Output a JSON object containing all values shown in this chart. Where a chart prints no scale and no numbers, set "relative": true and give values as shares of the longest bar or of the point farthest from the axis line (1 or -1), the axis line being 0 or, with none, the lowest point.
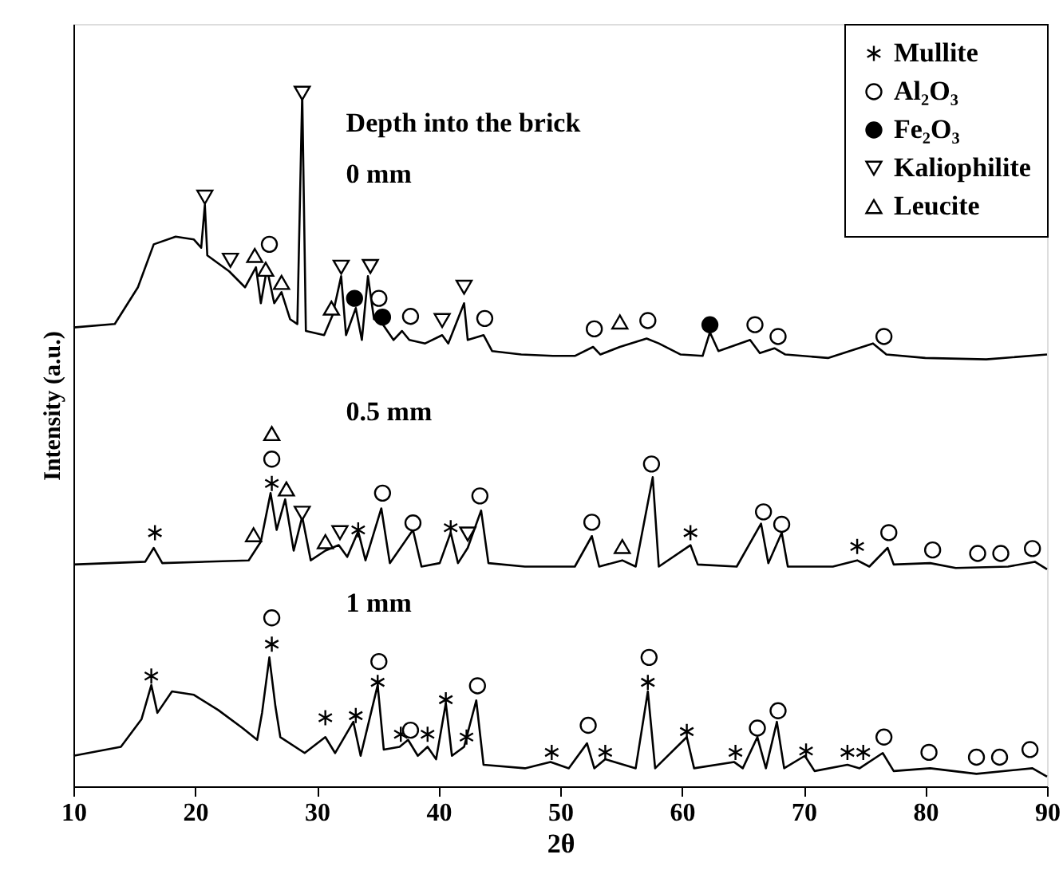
{
  "chart_data": {
    "type": "line",
    "relative": true,
    "xlabel": "2θ",
    "ylabel": "Intensity (a.u.)",
    "annotations": [
      "Depth into the brick",
      "0 mm",
      "0.5 mm",
      "1 mm"
    ],
    "xlim": [
      10,
      90
    ],
    "xticks": [
      10,
      20,
      30,
      40,
      50,
      60,
      70,
      80,
      90
    ],
    "legend": "top right",
    "grid": false,
    "tick_labels": "x",
    "series": [
      {
        "color": "#000000",
        "x": [
          10,
          13.4,
          15.3,
          16.6,
          18.4,
          19.9,
          20.5,
          20.8,
          21.0,
          22.8,
          24.1,
          25.0,
          25.4,
          25.9,
          26.5,
          27.1,
          27.8,
          28.4,
          28.8,
          29.1,
          30.6,
          31.3,
          32.0,
          32.4,
          33.2,
          33.7,
          34.2,
          34.7,
          35.4,
          36.3,
          37.0,
          37.6,
          38.9,
          40.3,
          40.8,
          42.1,
          42.4,
          43.7,
          44.4,
          46.8,
          49.4,
          51.2,
          52.7,
          53.3,
          54.9,
          57.1,
          58.1,
          59.9,
          61.7,
          62.3,
          63.0,
          65.6,
          66.4,
          67.6,
          68.5,
          72.0,
          75.7,
          76.8,
          80.0,
          85.0,
          90
        ],
        "values": [
          0.662,
          0.667,
          0.72,
          0.782,
          0.793,
          0.789,
          0.777,
          0.839,
          0.766,
          0.743,
          0.72,
          0.749,
          0.697,
          0.747,
          0.697,
          0.713,
          0.674,
          0.667,
          1.0,
          0.657,
          0.651,
          0.68,
          0.736,
          0.651,
          0.69,
          0.644,
          0.736,
          0.674,
          0.667,
          0.644,
          0.657,
          0.644,
          0.639,
          0.651,
          0.639,
          0.697,
          0.644,
          0.651,
          0.628,
          0.623,
          0.621,
          0.621,
          0.634,
          0.623,
          0.634,
          0.646,
          0.639,
          0.623,
          0.621,
          0.655,
          0.628,
          0.644,
          0.625,
          0.632,
          0.623,
          0.618,
          0.639,
          0.623,
          0.618,
          0.616,
          0.623
        ]
      },
      {
        "color": "#000000",
        "x": [
          10,
          15.9,
          16.6,
          17.3,
          24.4,
          25.4,
          26.2,
          26.7,
          27.4,
          28.1,
          28.8,
          29.5,
          30.7,
          31.8,
          32.5,
          33.4,
          34.0,
          35.3,
          36.0,
          37.9,
          38.6,
          40.1,
          41.0,
          41.6,
          42.4,
          43.5,
          44.1,
          47.1,
          51.2,
          52.6,
          53.2,
          55.1,
          56.2,
          57.6,
          58.1,
          60.7,
          61.3,
          64.5,
          66.5,
          67.1,
          68.2,
          68.7,
          72.4,
          74.4,
          75.4,
          76.9,
          77.4,
          80.4,
          82.5,
          86.8,
          89.0,
          90
        ],
        "values": [
          0.32,
          0.324,
          0.344,
          0.322,
          0.326,
          0.353,
          0.423,
          0.37,
          0.414,
          0.34,
          0.389,
          0.326,
          0.34,
          0.348,
          0.331,
          0.368,
          0.326,
          0.401,
          0.322,
          0.37,
          0.317,
          0.322,
          0.366,
          0.322,
          0.344,
          0.398,
          0.322,
          0.317,
          0.317,
          0.361,
          0.317,
          0.326,
          0.317,
          0.446,
          0.317,
          0.348,
          0.32,
          0.317,
          0.379,
          0.322,
          0.366,
          0.317,
          0.317,
          0.326,
          0.317,
          0.344,
          0.32,
          0.322,
          0.315,
          0.317,
          0.324,
          0.313
        ]
      },
      {
        "color": "#000000",
        "x": [
          10,
          13.9,
          15.6,
          16.4,
          16.9,
          18.1,
          19.9,
          21.9,
          23.9,
          25.1,
          25.5,
          26.1,
          26.6,
          27.0,
          29.0,
          30.7,
          31.5,
          33.0,
          33.6,
          35.0,
          35.5,
          36.8,
          37.5,
          38.3,
          39.1,
          39.8,
          40.6,
          41.1,
          42.1,
          43.1,
          43.7,
          47.1,
          49.2,
          50.7,
          52.2,
          52.8,
          53.7,
          56.2,
          57.2,
          57.8,
          60.4,
          61.0,
          64.3,
          65.0,
          66.2,
          66.9,
          67.8,
          68.4,
          70.1,
          70.9,
          73.6,
          74.6,
          76.5,
          77.4,
          80.4,
          84.2,
          88.8,
          90
        ],
        "values": [
          0.044,
          0.057,
          0.097,
          0.146,
          0.106,
          0.137,
          0.132,
          0.11,
          0.084,
          0.067,
          0.106,
          0.186,
          0.115,
          0.071,
          0.048,
          0.071,
          0.048,
          0.093,
          0.044,
          0.146,
          0.053,
          0.057,
          0.067,
          0.044,
          0.057,
          0.039,
          0.12,
          0.044,
          0.057,
          0.124,
          0.031,
          0.026,
          0.035,
          0.026,
          0.062,
          0.026,
          0.039,
          0.026,
          0.137,
          0.026,
          0.071,
          0.026,
          0.035,
          0.026,
          0.071,
          0.026,
          0.093,
          0.026,
          0.044,
          0.022,
          0.031,
          0.026,
          0.048,
          0.022,
          0.026,
          0.018,
          0.026,
          0.014
        ]
      },
      {
        "name": "Mullite",
        "color": "#000000",
        "type": "scatter",
        "marker": "cross",
        "x": [
          16.7,
          26.3,
          33.4,
          41.0,
          60.7,
          74.4,
          16.4,
          26.3,
          30.7,
          33.2,
          35.0,
          36.9,
          39.1,
          40.6,
          42.3,
          49.3,
          53.7,
          57.2,
          60.4,
          64.4,
          70.2,
          73.6,
          74.9
        ],
        "values": [
          0.366,
          0.437,
          0.37,
          0.373,
          0.366,
          0.346,
          0.159,
          0.205,
          0.099,
          0.102,
          0.15,
          0.075,
          0.075,
          0.125,
          0.071,
          0.049,
          0.049,
          0.15,
          0.079,
          0.049,
          0.051,
          0.049,
          0.049
        ]
      },
      {
        "name": "Al₂O₃",
        "color": "#ffffff",
        "type": "scatter",
        "marker": "circle",
        "x": [
          26.1,
          35.1,
          37.7,
          43.8,
          52.8,
          57.2,
          66.0,
          67.9,
          76.6,
          26.3,
          35.4,
          37.9,
          43.4,
          52.6,
          57.5,
          66.7,
          68.2,
          77.0,
          80.6,
          84.3,
          86.2,
          88.8,
          26.3,
          35.1,
          37.7,
          43.2,
          52.3,
          57.3,
          66.2,
          67.9,
          76.6,
          80.3,
          84.2,
          86.1,
          88.6
        ],
        "values": [
          0.782,
          0.704,
          0.678,
          0.675,
          0.66,
          0.672,
          0.666,
          0.649,
          0.649,
          0.472,
          0.423,
          0.38,
          0.419,
          0.381,
          0.465,
          0.396,
          0.378,
          0.366,
          0.341,
          0.336,
          0.336,
          0.343,
          0.243,
          0.18,
          0.081,
          0.145,
          0.088,
          0.186,
          0.084,
          0.109,
          0.071,
          0.049,
          0.042,
          0.042,
          0.053
        ]
      },
      {
        "name": "Fe₂O₃",
        "color": "#000000",
        "type": "scatter",
        "marker": "circle",
        "x": [
          33.1,
          35.4,
          62.3
        ],
        "values": [
          0.704,
          0.677,
          0.666
        ]
      },
      {
        "name": "Kaliophilite",
        "color": "#ffffff",
        "type": "scatter",
        "marker": "triangle-down",
        "x": [
          20.8,
          22.9,
          28.8,
          32.0,
          34.4,
          40.3,
          42.1,
          28.8,
          31.9,
          42.4
        ],
        "values": [
          0.85,
          0.759,
          1.0,
          0.749,
          0.75,
          0.672,
          0.72,
          0.394,
          0.366,
          0.364
        ]
      },
      {
        "name": "Leucite",
        "color": "#ffffff",
        "type": "scatter",
        "marker": "triangle",
        "x": [
          24.9,
          25.8,
          27.1,
          31.2,
          54.9,
          26.3,
          27.5,
          24.8,
          30.7,
          55.1
        ],
        "values": [
          0.766,
          0.746,
          0.727,
          0.69,
          0.67,
          0.509,
          0.429,
          0.363,
          0.353,
          0.346
        ]
      }
    ]
  }
}
